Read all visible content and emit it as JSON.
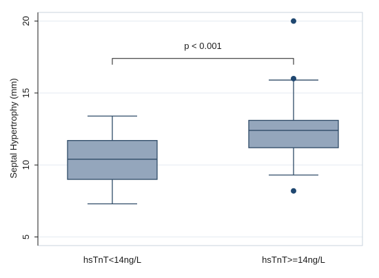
{
  "chart_data": {
    "type": "box",
    "ylabel": "Septal Hypertrophy (mm)",
    "ylim": [
      4.4,
      20.6
    ],
    "yticks": [
      5,
      10,
      15,
      20
    ],
    "grid": true,
    "categories": [
      "hsTnT<14ng/L",
      "hsTnT>=14ng/L"
    ],
    "boxes": [
      {
        "category": "hsTnT<14ng/L",
        "min": 7.3,
        "q1": 9.0,
        "median": 10.4,
        "q3": 11.7,
        "max": 13.4,
        "outliers": []
      },
      {
        "category": "hsTnT>=14ng/L",
        "min": 9.3,
        "q1": 11.2,
        "median": 12.4,
        "q3": 13.1,
        "max": 15.9,
        "outliers": [
          8.2,
          16.0,
          20.0
        ]
      }
    ],
    "annotation": {
      "text": "p < 0.001",
      "between": [
        0,
        1
      ],
      "y": 17.4
    },
    "colors": {
      "box_fill": "#94A6BC",
      "box_stroke": "#2E4A66",
      "outlier": "#1F4770",
      "grid": "#E4EAF1"
    }
  }
}
